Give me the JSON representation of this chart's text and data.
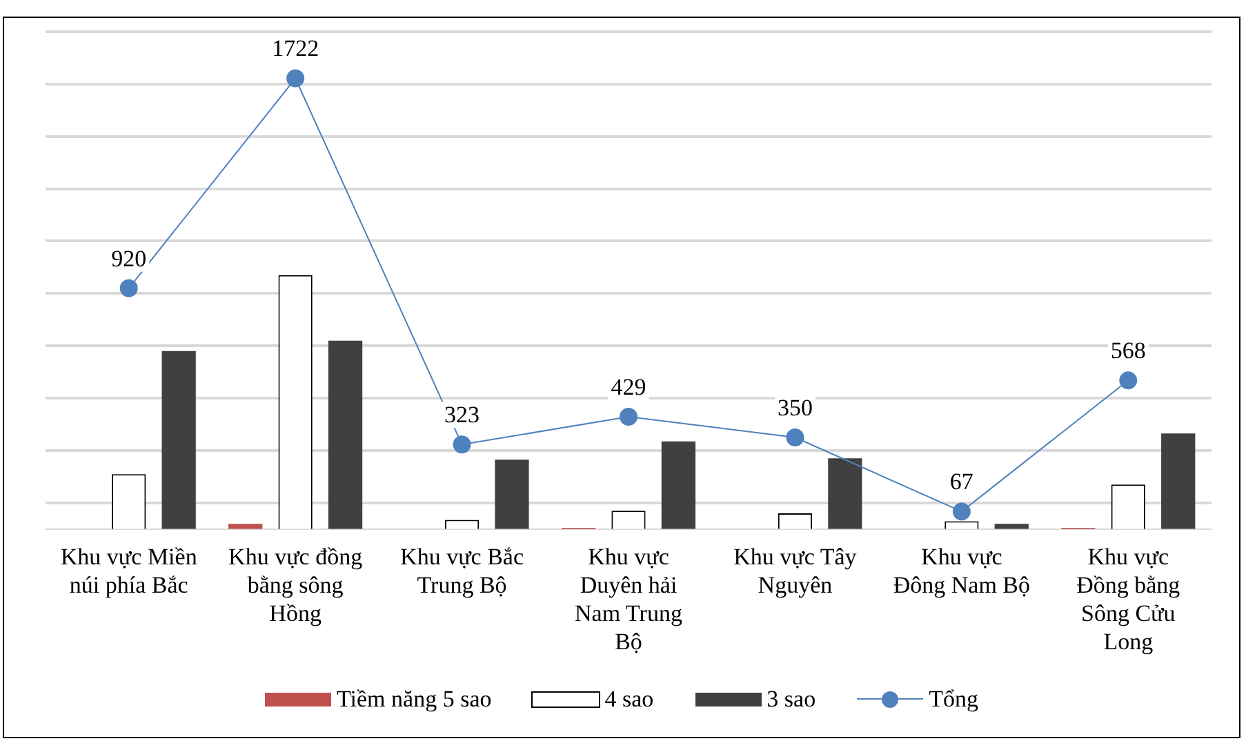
{
  "chart_data": {
    "type": "bar",
    "grid": "y",
    "legend": "bottom",
    "tick_labels": "x",
    "ylim": [
      0,
      1900
    ],
    "yticks": [
      {
        "value": 100,
        "label": null
      },
      {
        "value": 300,
        "label": null
      },
      {
        "value": 500,
        "label": null
      },
      {
        "value": 700,
        "label": null
      },
      {
        "value": 900,
        "label": null
      },
      {
        "value": 1100,
        "label": null
      },
      {
        "value": 1300,
        "label": null
      },
      {
        "value": 1500,
        "label": null
      },
      {
        "value": 1700,
        "label": null
      },
      {
        "value": 1900,
        "label": null
      }
    ],
    "categories": [
      "Khu vực Miền núi phía Bắc",
      "Khu vực đồng bằng sông Hồng",
      "Khu vực Bắc Trung Bộ",
      "Khu vực Duyên hải Nam Trung Bộ",
      "Khu vực Tây Nguyên",
      "Khu vực Đông Nam Bộ",
      "Khu vực Đồng bằng Sông Cửu Long"
    ],
    "series": [
      {
        "name": "Tiềm năng 5 sao",
        "color": "#c0504d",
        "values": [
          0,
          20,
          0,
          5,
          0,
          0,
          5
        ]
      },
      {
        "name": "4 sao",
        "color": "#ffffff",
        "values": [
          210,
          970,
          35,
          70,
          60,
          30,
          170
        ]
      },
      {
        "name": "3 sao",
        "color": "#404040",
        "values": [
          680,
          720,
          265,
          335,
          270,
          20,
          365
        ]
      },
      {
        "name": "Tổng",
        "type": "line",
        "color": "#4f81bd",
        "marker": "circle",
        "values": [
          920,
          1722,
          323,
          429,
          350,
          67,
          568
        ],
        "data_labels": true
      }
    ]
  }
}
